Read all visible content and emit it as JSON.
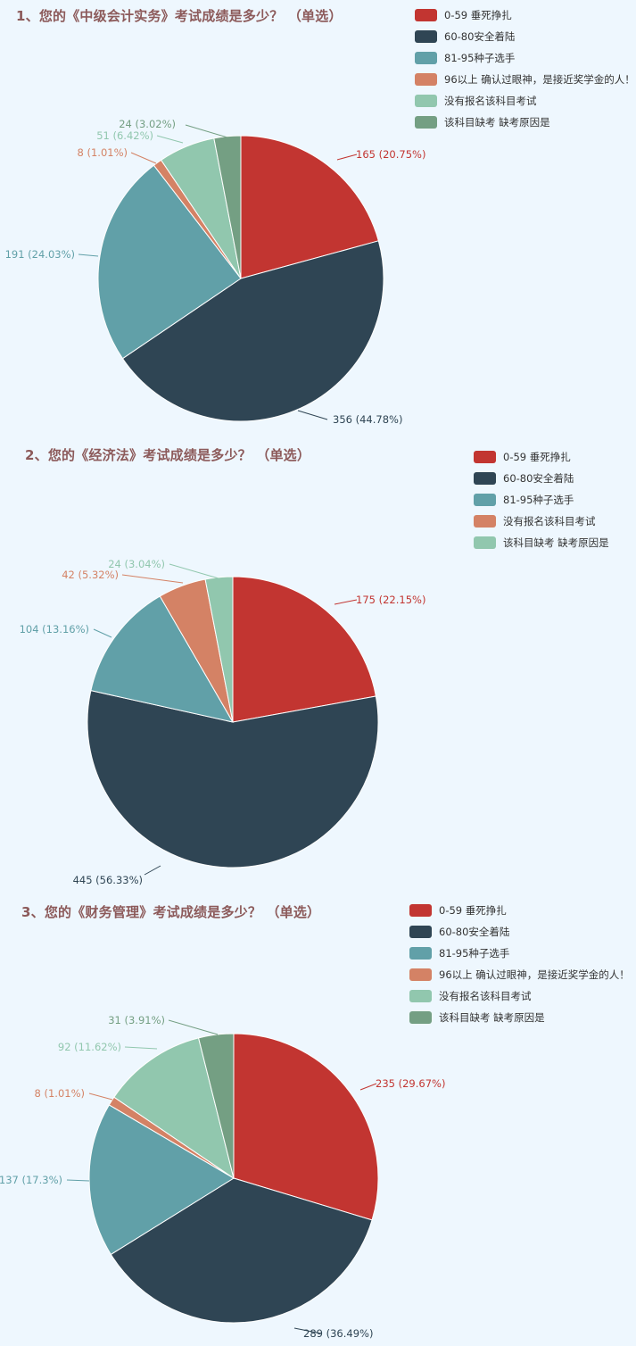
{
  "charts": [
    {
      "title": "1、您的《中级会计实务》考试成绩是多少？ （单选）",
      "legend": [
        {
          "label": "0-59 垂死挣扎",
          "color": "#c23531"
        },
        {
          "label": "60-80安全着陆",
          "color": "#2f4554"
        },
        {
          "label": "81-95种子选手",
          "color": "#61a0a8"
        },
        {
          "label": "96以上 确认过眼神，是接近奖学金的人！",
          "color": "#d48265"
        },
        {
          "label": "没有报名该科目考试",
          "color": "#91c7ae"
        },
        {
          "label": "该科目缺考 缺考原因是",
          "color": "#749f83"
        }
      ],
      "slice_labels": [
        "165 (20.75%)",
        "356 (44.78%)",
        "191 (24.03%)",
        "8 (1.01%)",
        "51 (6.42%)",
        "24 (3.02%)"
      ]
    },
    {
      "title": "2、您的《经济法》考试成绩是多少？ （单选）",
      "legend": [
        {
          "label": "0-59 垂死挣扎",
          "color": "#c23531"
        },
        {
          "label": "60-80安全着陆",
          "color": "#2f4554"
        },
        {
          "label": "81-95种子选手",
          "color": "#61a0a8"
        },
        {
          "label": "没有报名该科目考试",
          "color": "#d48265"
        },
        {
          "label": "该科目缺考 缺考原因是",
          "color": "#91c7ae"
        }
      ],
      "slice_labels": [
        "175 (22.15%)",
        "445 (56.33%)",
        "104 (13.16%)",
        "42 (5.32%)",
        "24 (3.04%)"
      ]
    },
    {
      "title": "3、您的《财务管理》考试成绩是多少？ （单选）",
      "legend": [
        {
          "label": "0-59 垂死挣扎",
          "color": "#c23531"
        },
        {
          "label": "60-80安全着陆",
          "color": "#2f4554"
        },
        {
          "label": "81-95种子选手",
          "color": "#61a0a8"
        },
        {
          "label": "96以上 确认过眼神，是接近奖学金的人！",
          "color": "#d48265"
        },
        {
          "label": "没有报名该科目考试",
          "color": "#91c7ae"
        },
        {
          "label": "该科目缺考 缺考原因是",
          "color": "#749f83"
        }
      ],
      "slice_labels": [
        "235 (29.67%)",
        "289 (36.49%)",
        "137 (17.3%)",
        "8 (1.01%)",
        "92 (11.62%)",
        "31 (3.91%)"
      ]
    }
  ],
  "chart_data": [
    {
      "type": "pie",
      "title": "1、您的《中级会计实务》考试成绩是多少？ （单选）",
      "categories": [
        "0-59 垂死挣扎",
        "60-80安全着陆",
        "81-95种子选手",
        "96以上 确认过眼神，是接近奖学金的人！",
        "没有报名该科目考试",
        "该科目缺考 缺考原因是"
      ],
      "values": [
        165,
        356,
        191,
        8,
        51,
        24
      ],
      "percentages": [
        20.75,
        44.78,
        24.03,
        1.01,
        6.42,
        3.02
      ],
      "colors": [
        "#c23531",
        "#2f4554",
        "#61a0a8",
        "#d48265",
        "#91c7ae",
        "#749f83"
      ],
      "legend_position": "top-right"
    },
    {
      "type": "pie",
      "title": "2、您的《经济法》考试成绩是多少？ （单选）",
      "categories": [
        "0-59 垂死挣扎",
        "60-80安全着陆",
        "81-95种子选手",
        "没有报名该科目考试",
        "该科目缺考 缺考原因是"
      ],
      "values": [
        175,
        445,
        104,
        42,
        24
      ],
      "percentages": [
        22.15,
        56.33,
        13.16,
        5.32,
        3.04
      ],
      "colors": [
        "#c23531",
        "#2f4554",
        "#61a0a8",
        "#d48265",
        "#91c7ae"
      ],
      "legend_position": "top-right"
    },
    {
      "type": "pie",
      "title": "3、您的《财务管理》考试成绩是多少？ （单选）",
      "categories": [
        "0-59 垂死挣扎",
        "60-80安全着陆",
        "81-95种子选手",
        "96以上 确认过眼神，是接近奖学金的人！",
        "没有报名该科目考试",
        "该科目缺考 缺考原因是"
      ],
      "values": [
        235,
        289,
        137,
        8,
        92,
        31
      ],
      "percentages": [
        29.67,
        36.49,
        17.3,
        1.01,
        11.62,
        3.91
      ],
      "colors": [
        "#c23531",
        "#2f4554",
        "#61a0a8",
        "#d48265",
        "#91c7ae",
        "#749f83"
      ],
      "legend_position": "top-right"
    }
  ]
}
